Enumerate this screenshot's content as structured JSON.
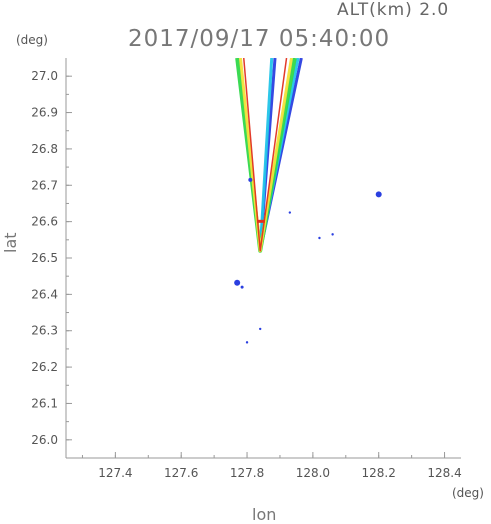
{
  "header": {
    "altitude_label": "ALT(km)  2.0",
    "timestamp": "2017/09/17 05:40:00"
  },
  "chart_data": {
    "type": "scatter",
    "title": "2017/09/17 05:40:00",
    "xlabel": "lon",
    "ylabel": "lat",
    "x_unit": "(deg)",
    "y_unit": "(deg)",
    "xlim": [
      127.25,
      128.45
    ],
    "ylim": [
      25.95,
      27.05
    ],
    "x_ticks": [
      "127.4",
      "127.6",
      "127.8",
      "128.0",
      "128.2",
      "128.4"
    ],
    "y_ticks": [
      "26.0",
      "26.1",
      "26.2",
      "26.3",
      "26.4",
      "26.5",
      "26.6",
      "26.7",
      "26.8",
      "26.9",
      "27.0"
    ],
    "grid": false,
    "colors": {
      "axis": "#9a9a9a",
      "blue": "#2a3fe0",
      "cyan": "#22c4e8",
      "green": "#30d84a",
      "yellow": "#f2e23a",
      "red": "#e03020"
    },
    "wedge_bands": [
      {
        "name": "yellow",
        "color_key": "yellow",
        "inner": [
          [
            127.78,
            27.05
          ],
          [
            127.84,
            26.53
          ],
          [
            127.95,
            27.05
          ]
        ],
        "outer": [
          [
            127.77,
            27.05
          ],
          [
            127.83,
            26.53
          ],
          [
            127.96,
            27.05
          ]
        ]
      }
    ],
    "echoes": [
      {
        "color_key": "blue",
        "lon": 128.2,
        "lat": 26.675,
        "size": 3
      },
      {
        "color_key": "blue",
        "lon": 127.77,
        "lat": 26.432,
        "size": 3
      },
      {
        "color_key": "blue",
        "lon": 127.785,
        "lat": 26.42,
        "size": 1.5
      },
      {
        "color_key": "blue",
        "lon": 127.8,
        "lat": 26.268,
        "size": 1.2
      },
      {
        "color_key": "blue",
        "lon": 127.84,
        "lat": 26.305,
        "size": 1.2
      },
      {
        "color_key": "blue",
        "lon": 127.93,
        "lat": 26.625,
        "size": 1.2
      },
      {
        "color_key": "blue",
        "lon": 128.02,
        "lat": 26.555,
        "size": 1.2
      },
      {
        "color_key": "blue",
        "lon": 128.06,
        "lat": 26.565,
        "size": 1.2
      },
      {
        "color_key": "blue",
        "lon": 127.81,
        "lat": 26.715,
        "size": 2
      }
    ]
  }
}
